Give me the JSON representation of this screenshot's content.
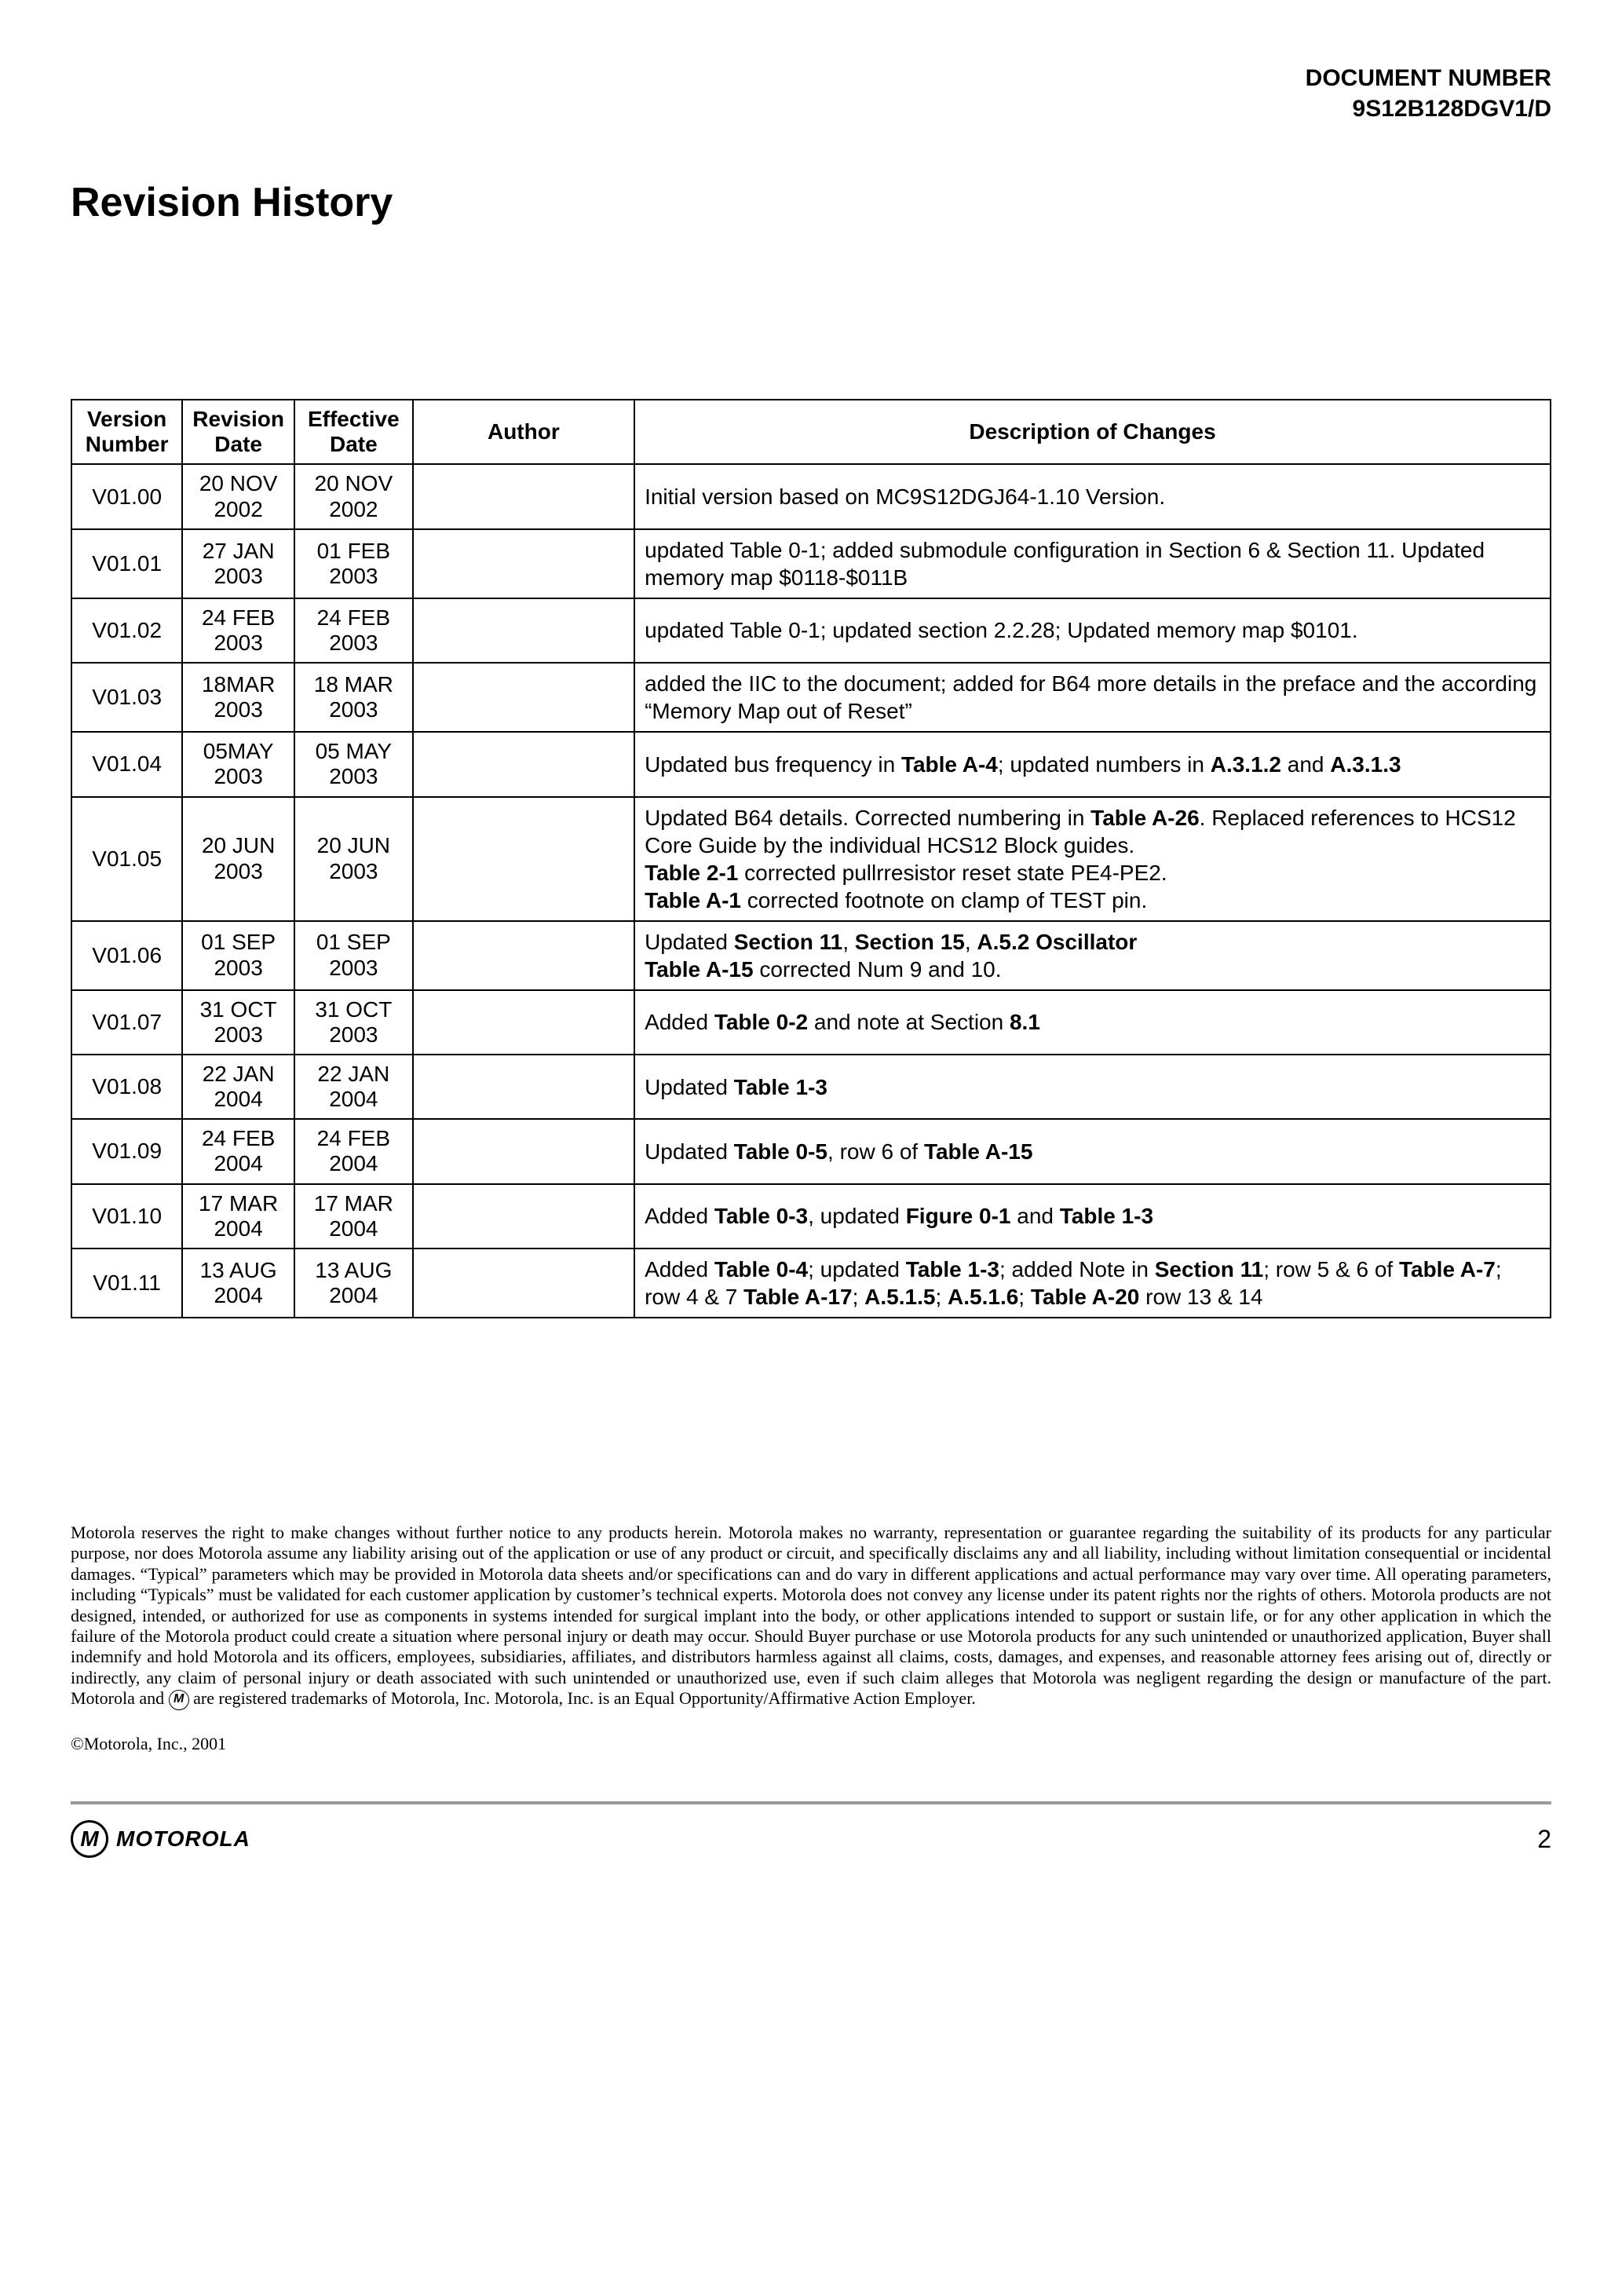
{
  "header": {
    "line1": "DOCUMENT NUMBER",
    "line2": "9S12B128DGV1/D"
  },
  "title": "Revision History",
  "table": {
    "columns": [
      "Version Number",
      "Revision Date",
      "Effective Date",
      "Author",
      "Description of Changes"
    ],
    "col_widths_pct": [
      7.5,
      7.5,
      8,
      15,
      62
    ],
    "border_color": "#000000",
    "font_size_pt": 28,
    "rows": [
      {
        "version": "V01.00",
        "rev_date": [
          "20 NOV",
          "2002"
        ],
        "eff_date": [
          "20 NOV",
          "2002"
        ],
        "author": "",
        "desc": [
          {
            "t": "Initial version based on MC9S12DGJ64-1.10 Version."
          }
        ]
      },
      {
        "version": "V01.01",
        "rev_date": [
          "27 JAN",
          "2003"
        ],
        "eff_date": [
          "01 FEB",
          "2003"
        ],
        "author": "",
        "desc": [
          {
            "t": "updated Table 0-1; added submodule configuration in Section 6 & Section 11. Updated memory map $0118-$011B"
          }
        ]
      },
      {
        "version": "V01.02",
        "rev_date": [
          "24 FEB",
          "2003"
        ],
        "eff_date": [
          "24 FEB",
          "2003"
        ],
        "author": "",
        "desc": [
          {
            "t": "updated Table 0-1; updated section 2.2.28; Updated memory map $0101."
          }
        ]
      },
      {
        "version": "V01.03",
        "rev_date": [
          "18MAR",
          "2003"
        ],
        "eff_date": [
          "18 MAR",
          "2003"
        ],
        "author": "",
        "desc": [
          {
            "t": "added the IIC to the document; added for B64 more details in the preface and the according “Memory Map out of Reset”"
          }
        ]
      },
      {
        "version": "V01.04",
        "rev_date": [
          "05MAY",
          "2003"
        ],
        "eff_date": [
          "05 MAY",
          "2003"
        ],
        "author": "",
        "desc": [
          {
            "t": "Updated bus frequency in "
          },
          {
            "t": "Table A-4",
            "b": true
          },
          {
            "t": "; updated numbers in "
          },
          {
            "t": "A.3.1.2",
            "b": true
          },
          {
            "t": " and "
          },
          {
            "t": "A.3.1.3",
            "b": true
          }
        ]
      },
      {
        "version": "V01.05",
        "rev_date": [
          "20 JUN",
          "2003"
        ],
        "eff_date": [
          "20 JUN",
          "2003"
        ],
        "author": "",
        "desc": [
          {
            "t": "Updated B64 details. Corrected numbering in "
          },
          {
            "t": "Table A-26",
            "b": true
          },
          {
            "t": ". Replaced references to HCS12 Core Guide by the individual HCS12 Block guides."
          },
          {
            "br": true
          },
          {
            "t": "Table 2-1",
            "b": true
          },
          {
            "t": " corrected pullrresistor reset state PE4-PE2."
          },
          {
            "br": true
          },
          {
            "t": "Table A-1",
            "b": true
          },
          {
            "t": " corrected footnote on clamp of TEST pin."
          }
        ]
      },
      {
        "version": "V01.06",
        "rev_date": [
          "01 SEP",
          "2003"
        ],
        "eff_date": [
          "01 SEP",
          "2003"
        ],
        "author": "",
        "desc": [
          {
            "t": "Updated "
          },
          {
            "t": "Section 11",
            "b": true
          },
          {
            "t": ", "
          },
          {
            "t": "Section 15",
            "b": true
          },
          {
            "t": ", "
          },
          {
            "t": "A.5.2 Oscillator",
            "b": true
          },
          {
            "br": true
          },
          {
            "t": "Table A-15",
            "b": true
          },
          {
            "t": " corrected Num 9 and 10."
          }
        ]
      },
      {
        "version": "V01.07",
        "rev_date": [
          "31 OCT",
          "2003"
        ],
        "eff_date": [
          "31 OCT",
          "2003"
        ],
        "author": "",
        "desc": [
          {
            "t": "Added "
          },
          {
            "t": "Table 0-2",
            "b": true
          },
          {
            "t": " and note at Section "
          },
          {
            "t": "8.1",
            "b": true
          }
        ]
      },
      {
        "version": "V01.08",
        "rev_date": [
          "22 JAN",
          "2004"
        ],
        "eff_date": [
          "22 JAN",
          "2004"
        ],
        "author": "",
        "desc": [
          {
            "t": "Updated "
          },
          {
            "t": "Table 1-3",
            "b": true
          }
        ]
      },
      {
        "version": "V01.09",
        "rev_date": [
          "24 FEB",
          "2004"
        ],
        "eff_date": [
          "24 FEB",
          "2004"
        ],
        "author": "",
        "desc": [
          {
            "t": "Updated "
          },
          {
            "t": "Table 0-5",
            "b": true
          },
          {
            "t": ", row 6 of "
          },
          {
            "t": "Table A-15",
            "b": true
          }
        ]
      },
      {
        "version": "V01.10",
        "rev_date": [
          "17 MAR",
          "2004"
        ],
        "eff_date": [
          "17 MAR",
          "2004"
        ],
        "author": "",
        "desc": [
          {
            "t": "Added "
          },
          {
            "t": "Table 0-3",
            "b": true
          },
          {
            "t": ", updated "
          },
          {
            "t": "Figure 0-1",
            "b": true
          },
          {
            "t": " and "
          },
          {
            "t": "Table 1-3",
            "b": true
          }
        ]
      },
      {
        "version": "V01.11",
        "rev_date": [
          "13 AUG",
          "2004"
        ],
        "eff_date": [
          "13 AUG",
          "2004"
        ],
        "author": "",
        "desc": [
          {
            "t": "Added "
          },
          {
            "t": "Table 0-4",
            "b": true
          },
          {
            "t": ";  updated "
          },
          {
            "t": "Table 1-3",
            "b": true
          },
          {
            "t": "; added Note in "
          },
          {
            "t": "Section 11",
            "b": true
          },
          {
            "t": "; row 5 & 6 of "
          },
          {
            "t": "Table A-7",
            "b": true
          },
          {
            "t": "; row 4 & 7 "
          },
          {
            "t": "Table A-17",
            "b": true
          },
          {
            "t": "; "
          },
          {
            "t": "A.5.1.5",
            "b": true
          },
          {
            "t": "; "
          },
          {
            "t": "A.5.1.6",
            "b": true
          },
          {
            "t": "; "
          },
          {
            "t": "Table A-20",
            "b": true
          },
          {
            "t": " row 13 & 14"
          }
        ]
      }
    ]
  },
  "disclaimer": {
    "text_before_logo": "Motorola reserves the right to make changes without further notice to any products herein. Motorola makes no warranty, representation or guarantee regarding the suitability of its products for any particular purpose, nor does Motorola assume any liability arising out of the application or use of any product or circuit, and specifically disclaims any and all liability, including without limitation consequential or incidental damages. “Typical” parameters which may be provided in Motorola data sheets and/or specifications can and do vary in different applications and actual performance may vary over time. All operating parameters, including “Typicals” must be validated for each customer application by customer’s technical experts. Motorola does not convey any license under its patent rights nor the rights of others. Motorola products are not designed, intended, or authorized for use as components in systems intended for surgical implant into the body, or other applications intended to support or sustain life, or for any other application in which the failure of the Motorola product could create a situation where personal injury or death may occur. Should Buyer purchase or use Motorola products for any such unintended or unauthorized application, Buyer shall indemnify and hold Motorola and its officers, employees, subsidiaries, affiliates, and distributors harmless against all claims, costs, damages, and expenses, and reasonable attorney fees arising out of, directly or indirectly, any claim of personal injury or death associated with such unintended or unauthorized use, even if such claim alleges that Motorola was negligent regarding the design or manufacture of the part. Motorola and ",
    "text_after_logo": " are registered trademarks of Motorola, Inc. Motorola, Inc. is an Equal Opportunity/Affirmative Action Employer.",
    "font_size_pt": 22,
    "font_family": "Times New Roman"
  },
  "copyright": "©Motorola, Inc., 2001",
  "footer": {
    "logo_letter": "M",
    "logo_text": "MOTOROLA",
    "page_num": "2"
  },
  "colors": {
    "text": "#000000",
    "background": "#ffffff",
    "hr": "#999999"
  }
}
